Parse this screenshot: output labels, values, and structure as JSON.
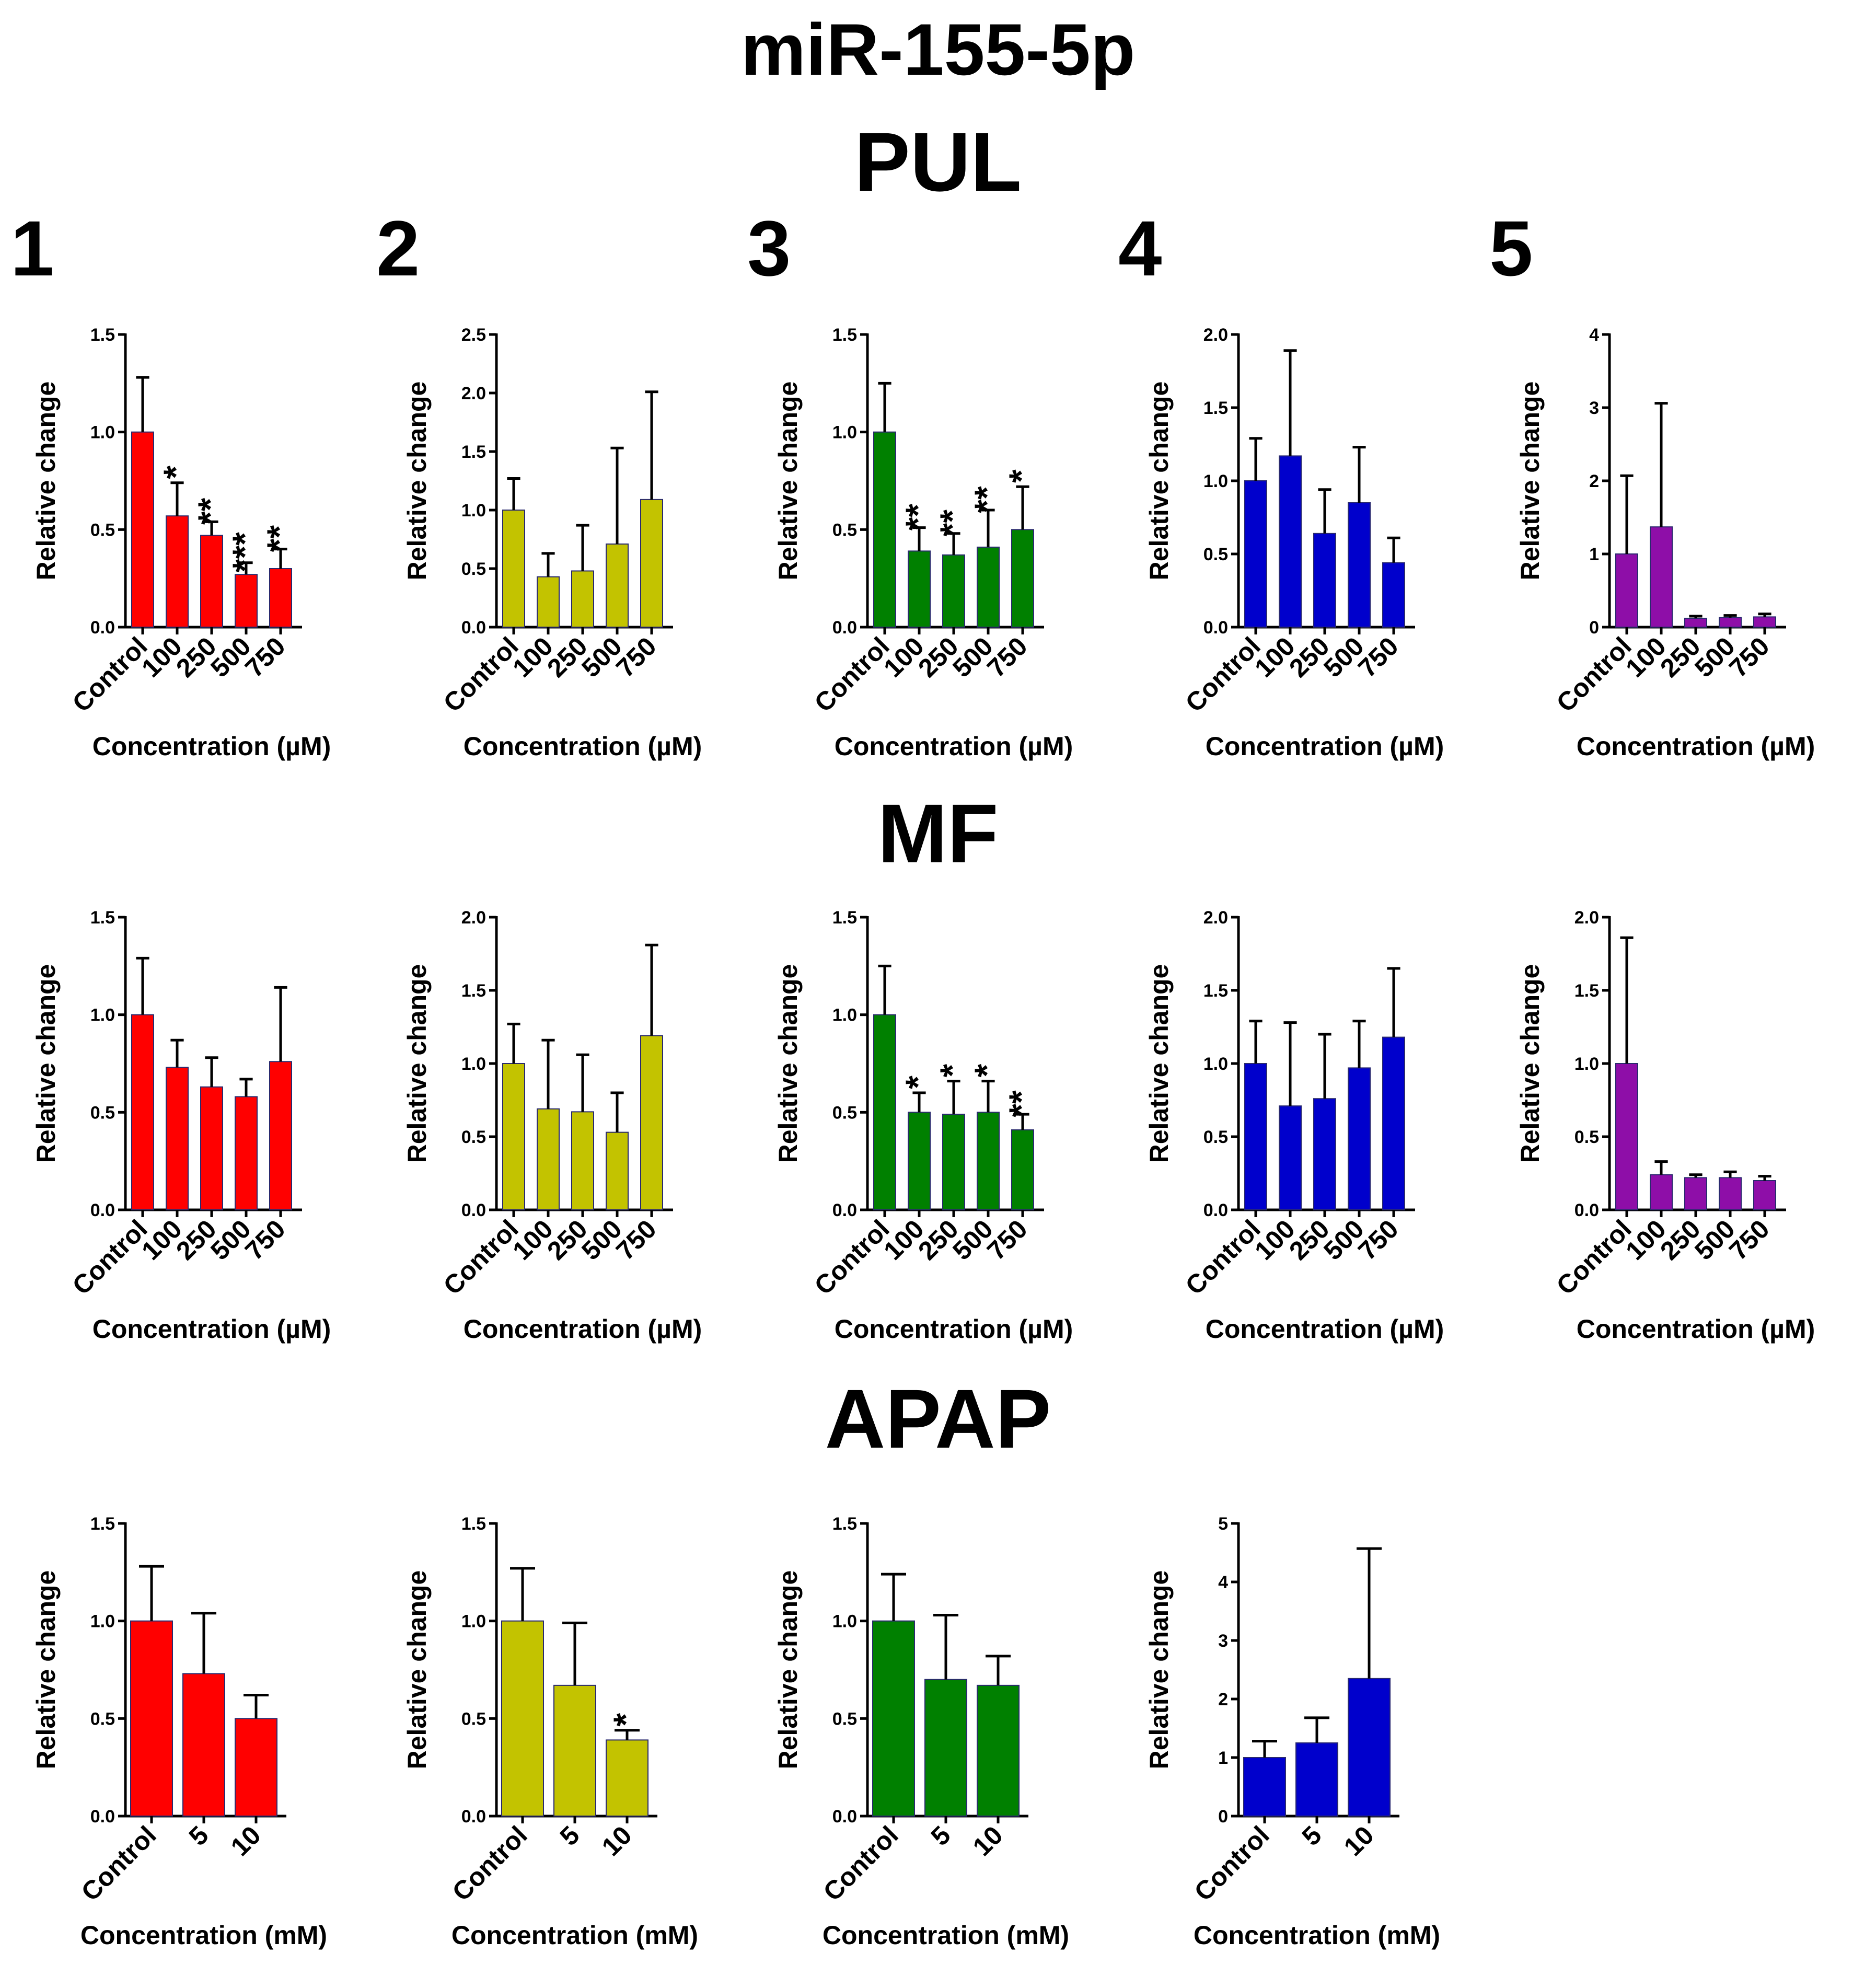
{
  "title": "miR-155-5p",
  "sections": {
    "pul": "PUL",
    "mf": "MF",
    "apap": "APAP"
  },
  "column_numbers": [
    "1",
    "2",
    "3",
    "4",
    "5"
  ],
  "colors": {
    "col1": "#ff0000",
    "col2": "#c3c300",
    "col3": "#008000",
    "col4": "#0000cc",
    "col5": "#8e0ea8",
    "bar_outline": "#2a2a6e"
  },
  "chart_data": [
    {
      "id": "pul-1",
      "type": "bar",
      "row": "PUL",
      "col": 1,
      "color": "#ff0000",
      "categories": [
        "Control",
        "100",
        "250",
        "500",
        "750"
      ],
      "values": [
        1.0,
        0.57,
        0.47,
        0.27,
        0.3
      ],
      "errors": [
        0.28,
        0.17,
        0.07,
        0.06,
        0.1
      ],
      "significance": [
        "",
        "*",
        "**",
        "***",
        "**"
      ],
      "ylim": [
        0,
        1.5
      ],
      "yticks": [
        "0.0",
        "0.5",
        "1.0",
        "1.5"
      ],
      "xlabel": "Concentration (µM)",
      "ylabel": "Relative change"
    },
    {
      "id": "pul-2",
      "type": "bar",
      "row": "PUL",
      "col": 2,
      "color": "#c3c300",
      "categories": [
        "Control",
        "100",
        "250",
        "500",
        "750"
      ],
      "values": [
        1.0,
        0.43,
        0.48,
        0.71,
        1.09
      ],
      "errors": [
        0.27,
        0.2,
        0.39,
        0.82,
        0.92
      ],
      "significance": [
        "",
        "",
        "",
        "",
        ""
      ],
      "ylim": [
        0,
        2.5
      ],
      "yticks": [
        "0.0",
        "0.5",
        "1.0",
        "1.5",
        "2.0",
        "2.5"
      ],
      "xlabel": "Concentration (µM)",
      "ylabel": "Relative change"
    },
    {
      "id": "pul-3",
      "type": "bar",
      "row": "PUL",
      "col": 3,
      "color": "#008000",
      "categories": [
        "Control",
        "100",
        "250",
        "500",
        "750"
      ],
      "values": [
        1.0,
        0.39,
        0.37,
        0.41,
        0.5
      ],
      "errors": [
        0.25,
        0.12,
        0.11,
        0.19,
        0.22
      ],
      "significance": [
        "",
        "**",
        "**",
        "**",
        "*"
      ],
      "ylim": [
        0,
        1.5
      ],
      "yticks": [
        "0.0",
        "0.5",
        "1.0",
        "1.5"
      ],
      "xlabel": "Concentration (µM)",
      "ylabel": "Relative change"
    },
    {
      "id": "pul-4",
      "type": "bar",
      "row": "PUL",
      "col": 4,
      "color": "#0000cc",
      "categories": [
        "Control",
        "100",
        "250",
        "500",
        "750"
      ],
      "values": [
        1.0,
        1.17,
        0.64,
        0.85,
        0.44
      ],
      "errors": [
        0.29,
        0.72,
        0.3,
        0.38,
        0.17
      ],
      "significance": [
        "",
        "",
        "",
        "",
        ""
      ],
      "ylim": [
        0,
        2.0
      ],
      "yticks": [
        "0.0",
        "0.5",
        "1.0",
        "1.5",
        "2.0"
      ],
      "xlabel": "Concentration (µM)",
      "ylabel": "Relative change"
    },
    {
      "id": "pul-5",
      "type": "bar",
      "row": "PUL",
      "col": 5,
      "color": "#8e0ea8",
      "categories": [
        "Control",
        "100",
        "250",
        "500",
        "750"
      ],
      "values": [
        1.0,
        1.37,
        0.12,
        0.13,
        0.14
      ],
      "errors": [
        1.07,
        1.69,
        0.03,
        0.03,
        0.04
      ],
      "significance": [
        "",
        "",
        "",
        "",
        ""
      ],
      "ylim": [
        0,
        4
      ],
      "yticks": [
        "0",
        "1",
        "2",
        "3",
        "4"
      ],
      "xlabel": "Concentration (µM)",
      "ylabel": "Relative change"
    },
    {
      "id": "mf-1",
      "type": "bar",
      "row": "MF",
      "col": 1,
      "color": "#ff0000",
      "categories": [
        "Control",
        "100",
        "250",
        "500",
        "750"
      ],
      "values": [
        1.0,
        0.73,
        0.63,
        0.58,
        0.76
      ],
      "errors": [
        0.29,
        0.14,
        0.15,
        0.09,
        0.38
      ],
      "significance": [
        "",
        "",
        "",
        "",
        ""
      ],
      "ylim": [
        0,
        1.5
      ],
      "yticks": [
        "0.0",
        "0.5",
        "1.0",
        "1.5"
      ],
      "xlabel": "Concentration (µM)",
      "ylabel": "Relative change"
    },
    {
      "id": "mf-2",
      "type": "bar",
      "row": "MF",
      "col": 2,
      "color": "#c3c300",
      "categories": [
        "Control",
        "100",
        "250",
        "500",
        "750"
      ],
      "values": [
        1.0,
        0.69,
        0.67,
        0.53,
        1.19
      ],
      "errors": [
        0.27,
        0.47,
        0.39,
        0.27,
        0.62
      ],
      "significance": [
        "",
        "",
        "",
        "",
        ""
      ],
      "ylim": [
        0,
        2.0
      ],
      "yticks": [
        "0.0",
        "0.5",
        "1.0",
        "1.5",
        "2.0"
      ],
      "xlabel": "Concentration (µM)",
      "ylabel": "Relative change"
    },
    {
      "id": "mf-3",
      "type": "bar",
      "row": "MF",
      "col": 3,
      "color": "#008000",
      "categories": [
        "Control",
        "100",
        "250",
        "500",
        "750"
      ],
      "values": [
        1.0,
        0.5,
        0.49,
        0.5,
        0.41
      ],
      "errors": [
        0.25,
        0.1,
        0.17,
        0.16,
        0.08
      ],
      "significance": [
        "",
        "*",
        "*",
        "*",
        "**"
      ],
      "ylim": [
        0,
        1.5
      ],
      "yticks": [
        "0.0",
        "0.5",
        "1.0",
        "1.5"
      ],
      "xlabel": "Concentration (µM)",
      "ylabel": "Relative change"
    },
    {
      "id": "mf-4",
      "type": "bar",
      "row": "MF",
      "col": 4,
      "color": "#0000cc",
      "categories": [
        "Control",
        "100",
        "250",
        "500",
        "750"
      ],
      "values": [
        1.0,
        0.71,
        0.76,
        0.97,
        1.18
      ],
      "errors": [
        0.29,
        0.57,
        0.44,
        0.32,
        0.47
      ],
      "significance": [
        "",
        "",
        "",
        "",
        ""
      ],
      "ylim": [
        0,
        2.0
      ],
      "yticks": [
        "0.0",
        "0.5",
        "1.0",
        "1.5",
        "2.0"
      ],
      "xlabel": "Concentration (µM)",
      "ylabel": "Relative change"
    },
    {
      "id": "mf-5",
      "type": "bar",
      "row": "MF",
      "col": 5,
      "color": "#8e0ea8",
      "categories": [
        "Control",
        "100",
        "250",
        "500",
        "750"
      ],
      "values": [
        1.0,
        0.24,
        0.22,
        0.22,
        0.2
      ],
      "errors": [
        0.86,
        0.09,
        0.02,
        0.04,
        0.03
      ],
      "significance": [
        "",
        "",
        "",
        "",
        ""
      ],
      "ylim": [
        0,
        2.0
      ],
      "yticks": [
        "0.0",
        "0.5",
        "1.0",
        "1.5",
        "2.0"
      ],
      "xlabel": "Concentration (µM)",
      "ylabel": "Relative change"
    },
    {
      "id": "apap-1",
      "type": "bar",
      "row": "APAP",
      "col": 1,
      "color": "#ff0000",
      "categories": [
        "Control",
        "5",
        "10"
      ],
      "values": [
        1.0,
        0.73,
        0.5
      ],
      "errors": [
        0.28,
        0.31,
        0.12
      ],
      "significance": [
        "",
        "",
        ""
      ],
      "ylim": [
        0,
        1.5
      ],
      "yticks": [
        "0.0",
        "0.5",
        "1.0",
        "1.5"
      ],
      "xlabel": "Concentration (mM)",
      "ylabel": "Relative change"
    },
    {
      "id": "apap-2",
      "type": "bar",
      "row": "APAP",
      "col": 2,
      "color": "#c3c300",
      "categories": [
        "Control",
        "5",
        "10"
      ],
      "values": [
        1.0,
        0.67,
        0.39
      ],
      "errors": [
        0.27,
        0.32,
        0.05
      ],
      "significance": [
        "",
        "",
        "*"
      ],
      "ylim": [
        0,
        1.5
      ],
      "yticks": [
        "0.0",
        "0.5",
        "1.0",
        "1.5"
      ],
      "xlabel": "Concentration (mM)",
      "ylabel": "Relative change"
    },
    {
      "id": "apap-3",
      "type": "bar",
      "row": "APAP",
      "col": 3,
      "color": "#008000",
      "categories": [
        "Control",
        "5",
        "10"
      ],
      "values": [
        1.0,
        0.7,
        0.67
      ],
      "errors": [
        0.24,
        0.33,
        0.15
      ],
      "significance": [
        "",
        "",
        ""
      ],
      "ylim": [
        0,
        1.5
      ],
      "yticks": [
        "0.0",
        "0.5",
        "1.0",
        "1.5"
      ],
      "xlabel": "Concentration (mM)",
      "ylabel": "Relative change"
    },
    {
      "id": "apap-4",
      "type": "bar",
      "row": "APAP",
      "col": 4,
      "color": "#0000cc",
      "categories": [
        "Control",
        "5",
        "10"
      ],
      "values": [
        1.0,
        1.25,
        2.35
      ],
      "errors": [
        0.28,
        0.43,
        2.22
      ],
      "significance": [
        "",
        "",
        ""
      ],
      "ylim": [
        0,
        5
      ],
      "yticks": [
        "0",
        "1",
        "2",
        "3",
        "4",
        "5"
      ],
      "xlabel": "Concentration (mM)",
      "ylabel": "Relative change"
    }
  ]
}
